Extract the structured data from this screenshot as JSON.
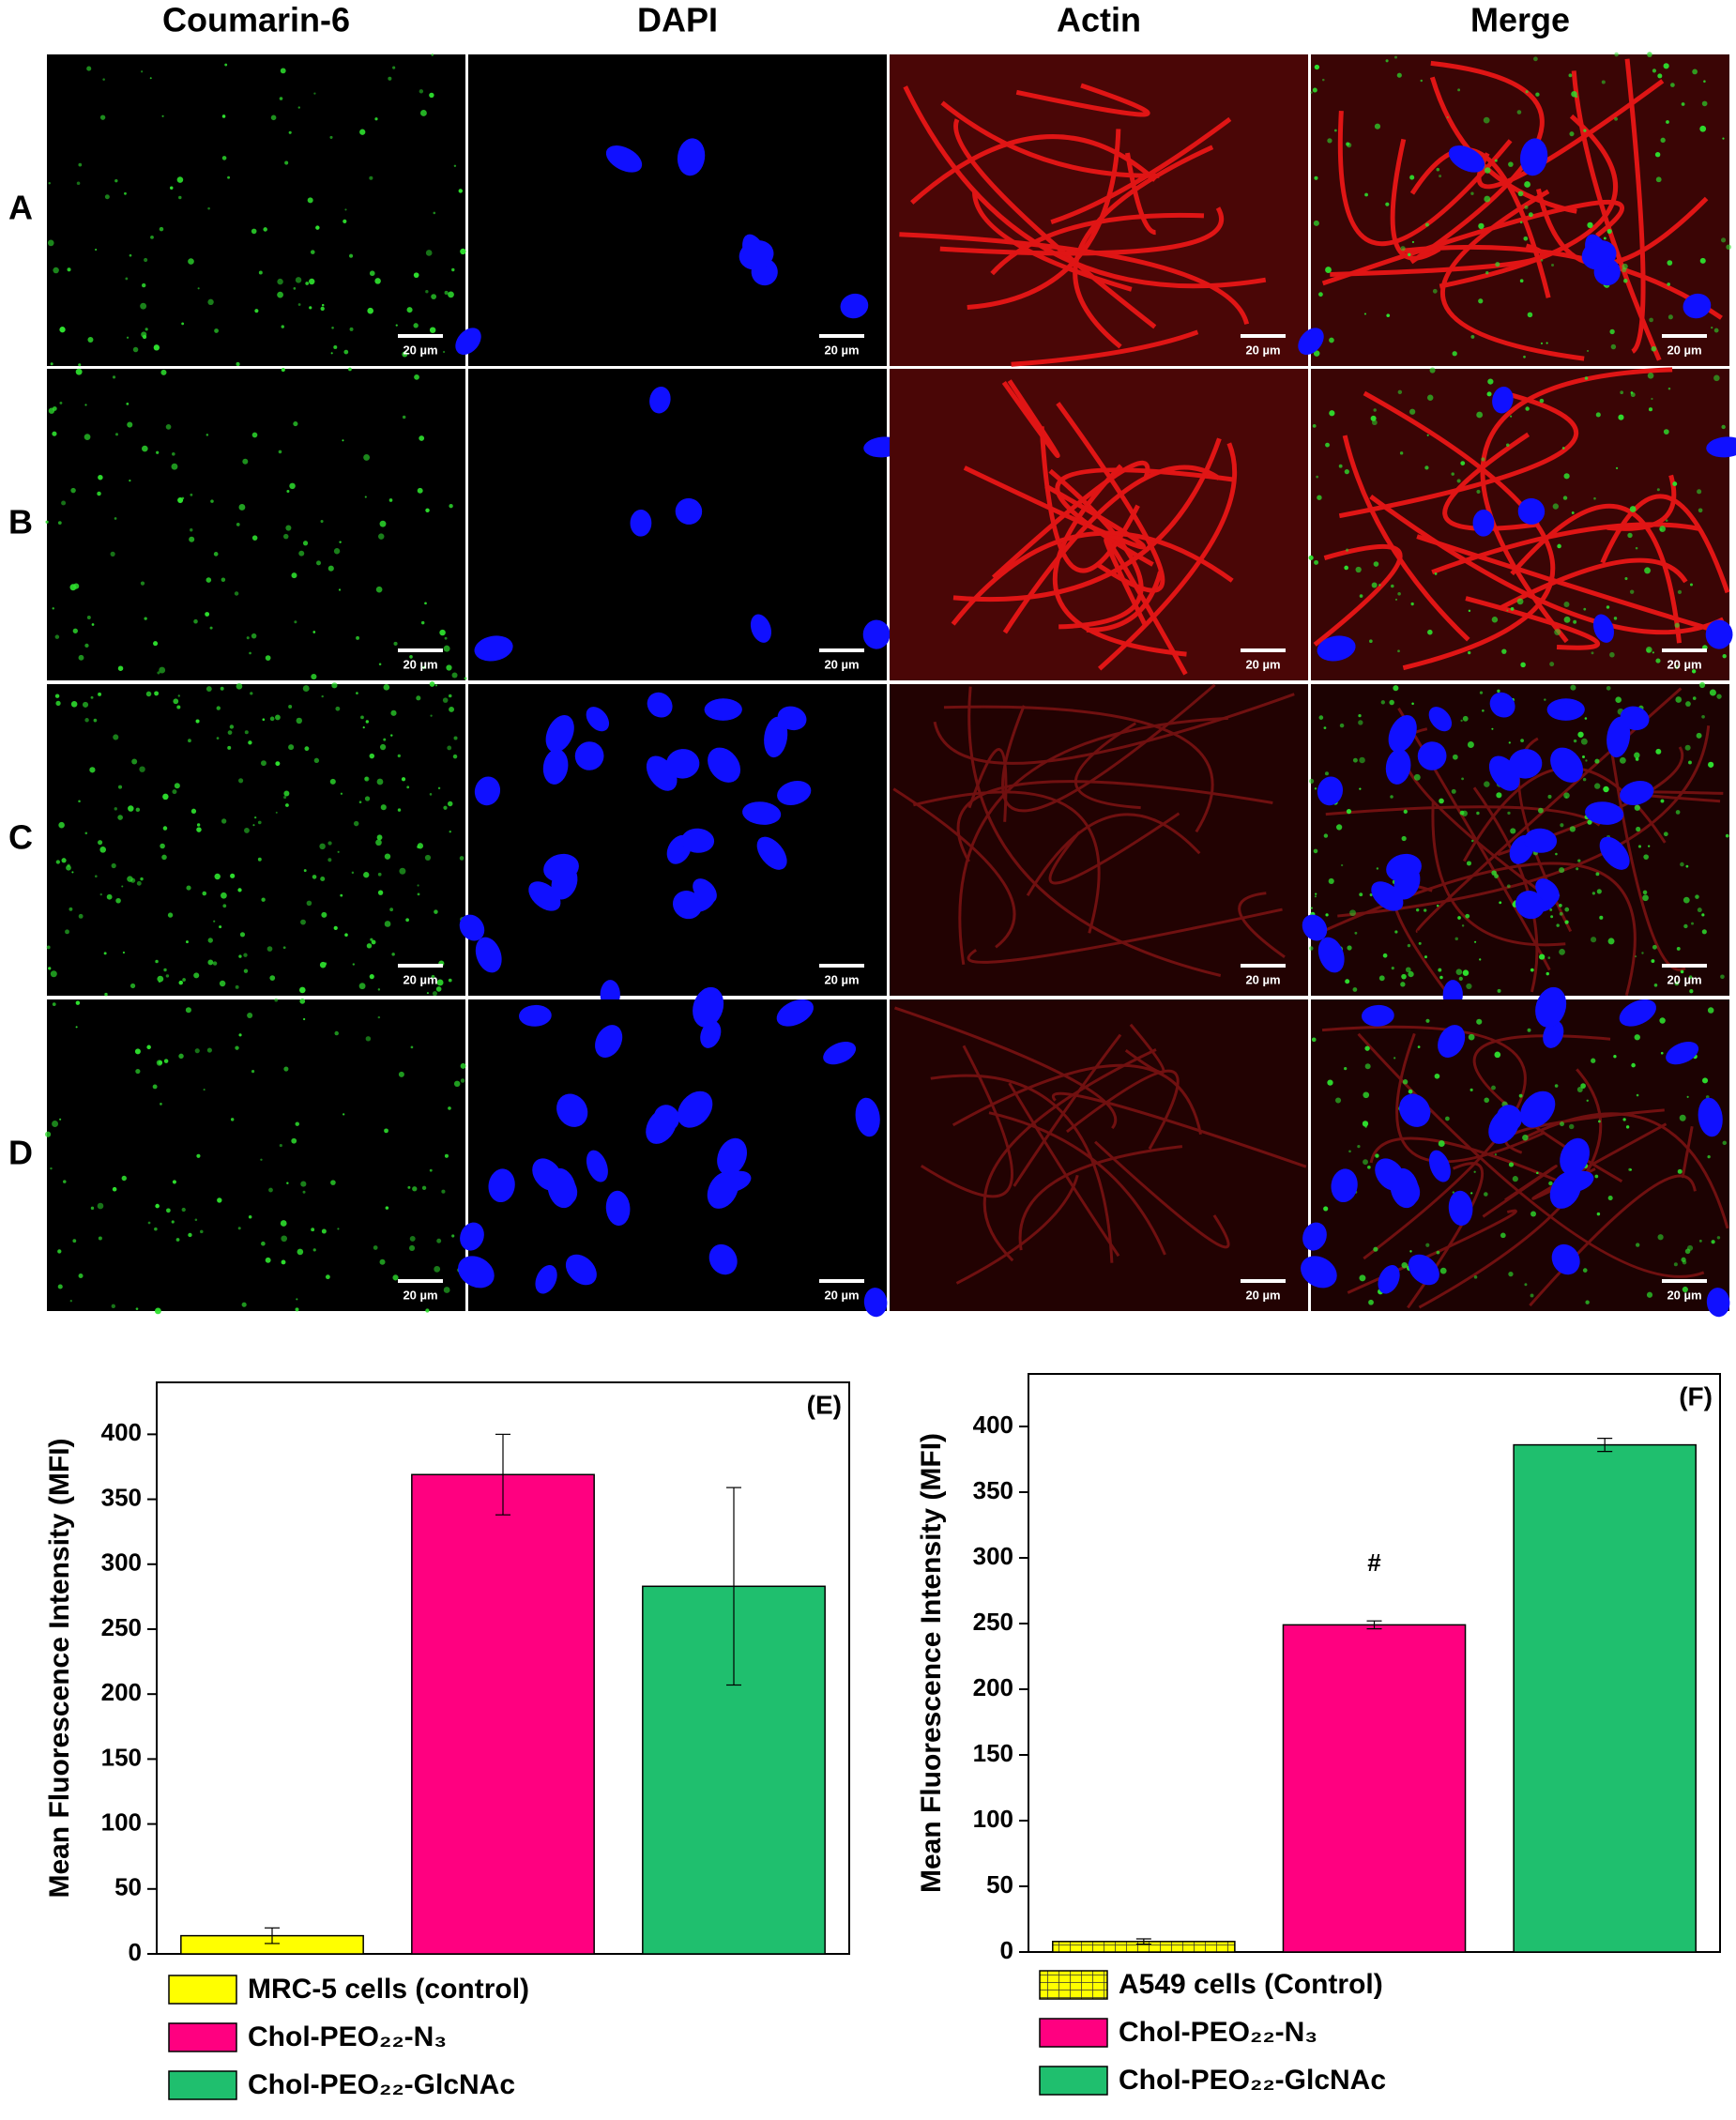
{
  "panels": {
    "columns": [
      "Coumarin-6",
      "DAPI",
      "Actin",
      "Merge"
    ],
    "rows": [
      "A",
      "B",
      "C",
      "D"
    ],
    "scale_bar": "20 µm"
  },
  "chart_data": [
    {
      "type": "bar",
      "panel_label": "(E)",
      "y_label": "Mean Fluorescence Intensity (MFI)",
      "categories": [
        "MRC-5 cells (control)",
        "Chol-PEO₂₂-N₃",
        "Chol-PEO₂₂-GlcNAc"
      ],
      "values": [
        14,
        369,
        283
      ],
      "errors": [
        6,
        31,
        76
      ],
      "colors": [
        "#ffff00",
        "#ff0080",
        "#1fbf6e"
      ],
      "patterns": [
        "solid",
        "solid",
        "solid"
      ],
      "ylim": [
        0,
        440
      ],
      "yticks": [
        0,
        50,
        100,
        150,
        200,
        250,
        300,
        350,
        400
      ]
    },
    {
      "type": "bar",
      "panel_label": "(F)",
      "y_label": "Mean Fluorescence Intensity (MFI)",
      "categories": [
        "A549 cells (Control)",
        "Chol-PEO₂₂-N₃",
        "Chol-PEO₂₂-GlcNAc"
      ],
      "values": [
        8,
        249,
        386
      ],
      "errors": [
        2,
        3,
        5
      ],
      "colors": [
        "#ffff00",
        "#ff0080",
        "#1fbf6e"
      ],
      "patterns": [
        "grid",
        "solid",
        "solid"
      ],
      "bar_annotations": [
        null,
        "#",
        null
      ],
      "ylim": [
        0,
        440
      ],
      "yticks": [
        0,
        50,
        100,
        150,
        200,
        250,
        300,
        350,
        400
      ]
    }
  ]
}
